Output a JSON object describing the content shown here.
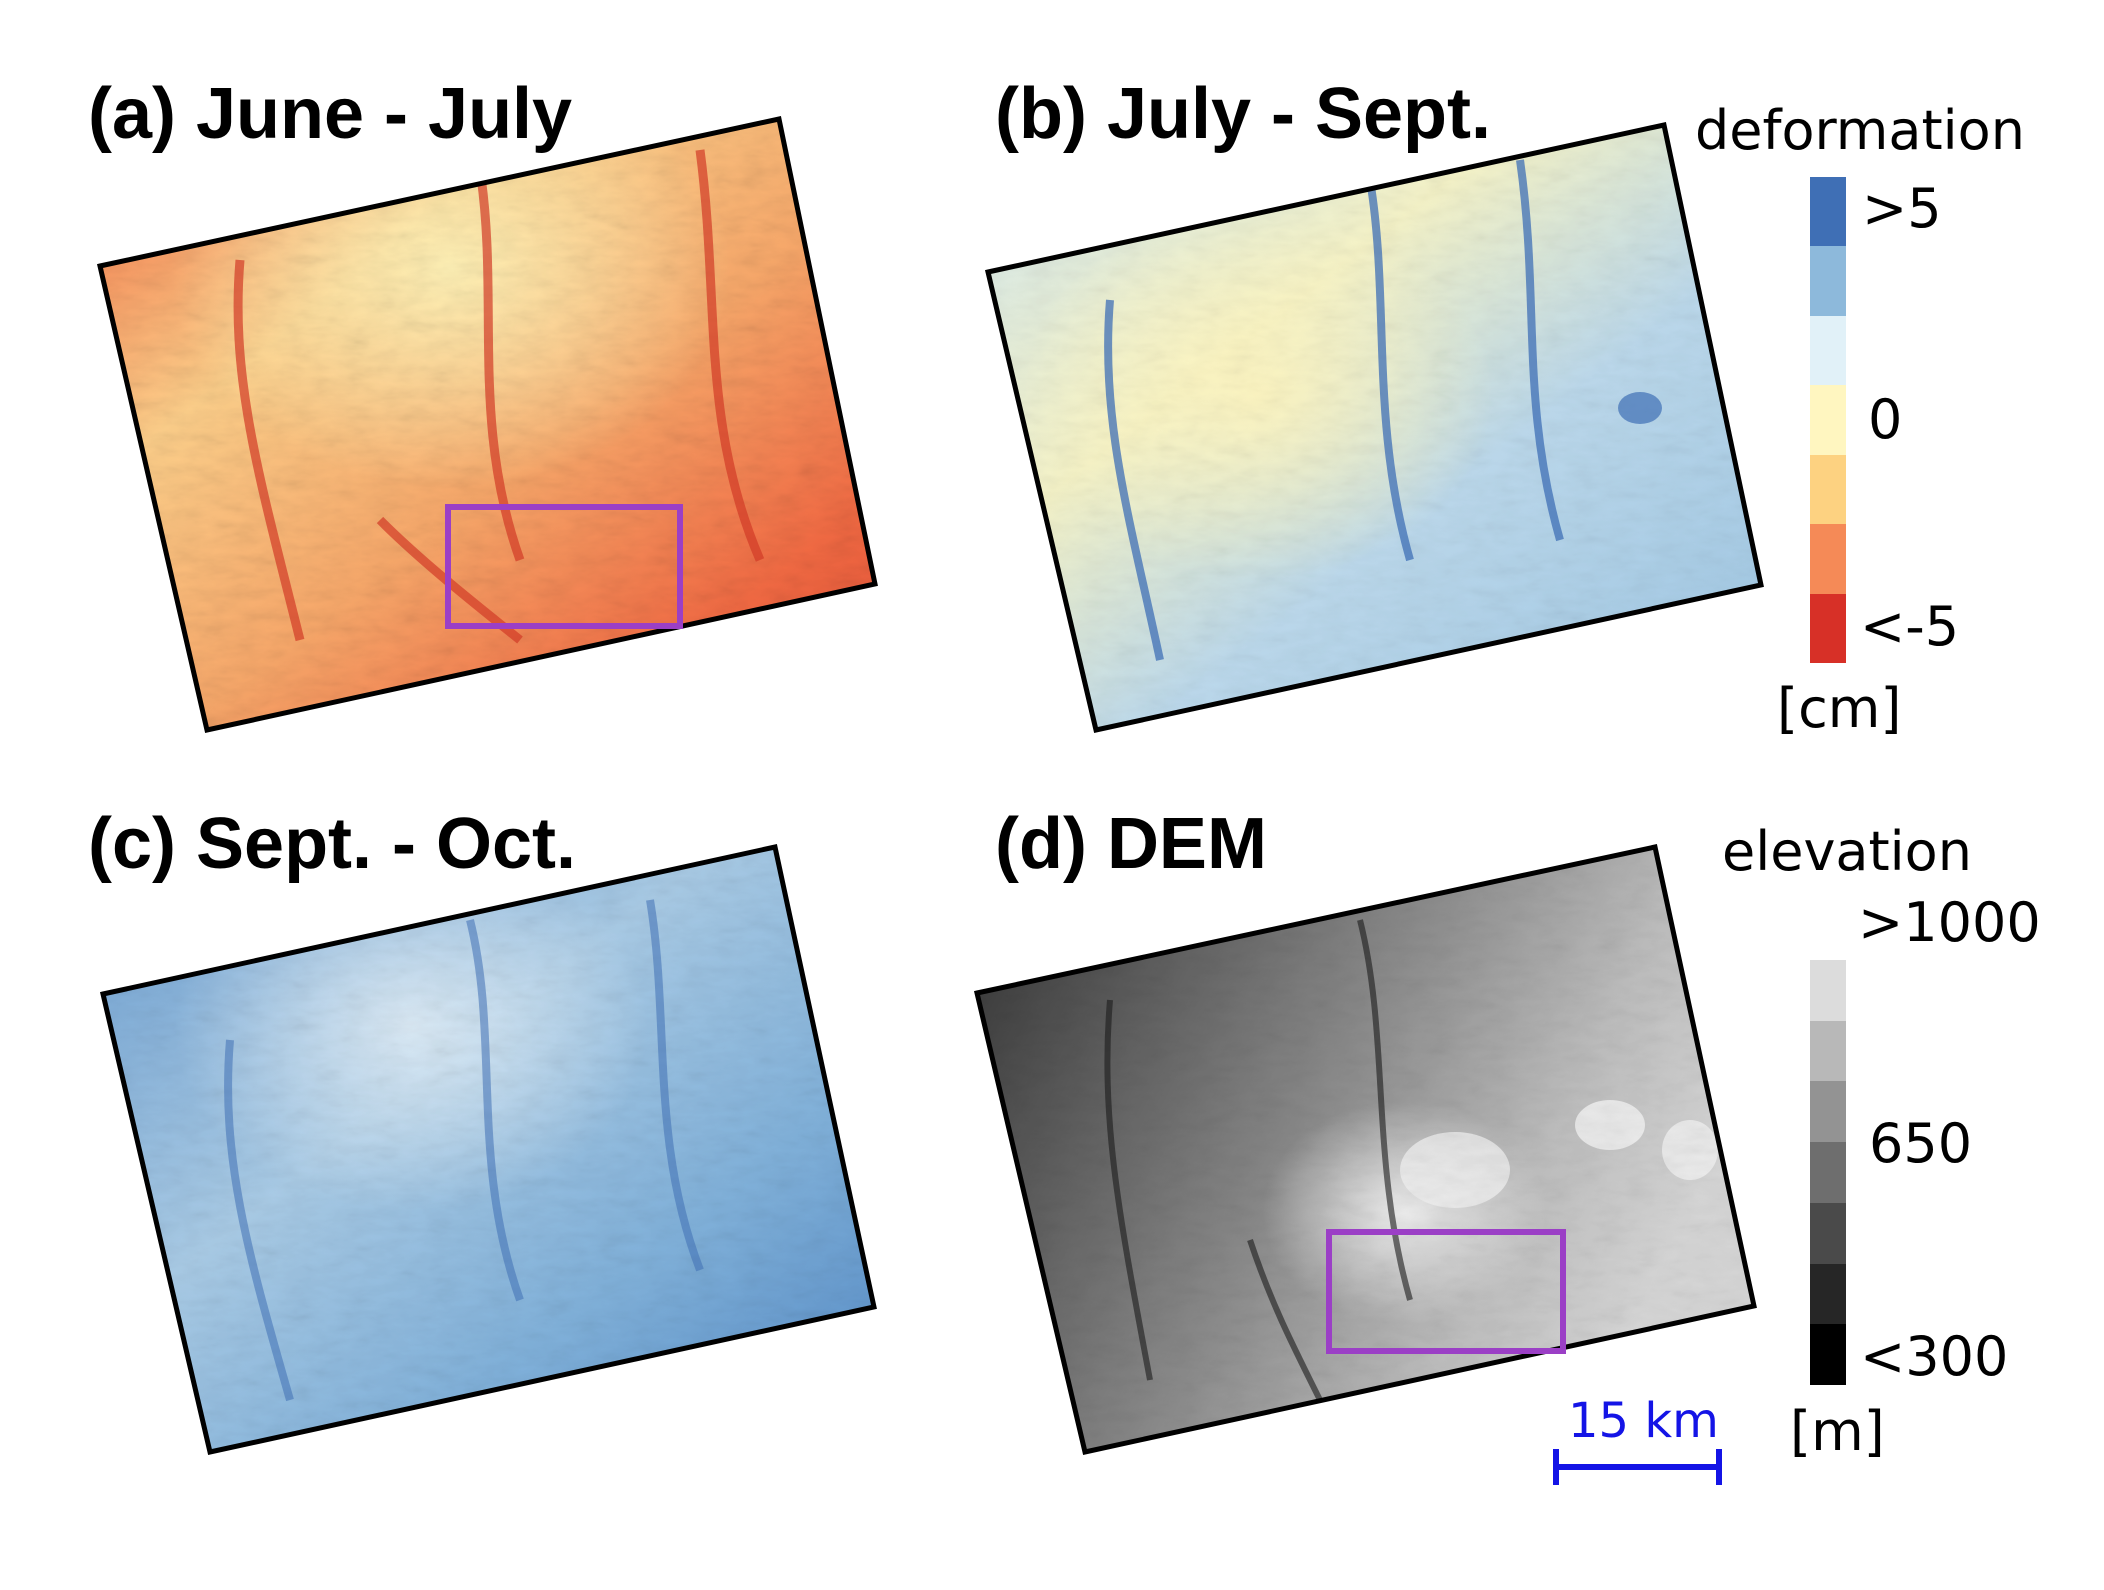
{
  "panels": [
    {
      "title": "(a) June - July"
    },
    {
      "title": "(b) July - Sept."
    },
    {
      "title": "(c) Sept. - Oct."
    },
    {
      "title": "(d) DEM"
    }
  ],
  "deformation_legend": {
    "title": "deformation",
    "labels": [
      ">5",
      "0",
      "<-5"
    ],
    "unit": "[cm]",
    "colors": [
      "#3f6fb5",
      "#8db9db",
      "#e1f1f8",
      "#fff6c0",
      "#fdd281",
      "#f58a57",
      "#d73027"
    ]
  },
  "elevation_legend": {
    "title": "elevation",
    "labels": [
      ">1000",
      "650",
      "<300"
    ],
    "unit": "[m]",
    "colors": [
      "#ffffff",
      "#dcdcdc",
      "#b8b8b8",
      "#939393",
      "#6e6e6e",
      "#4a4a4a",
      "#262626",
      "#000000"
    ]
  },
  "scale_bar": {
    "label": "15 km",
    "color": "#1414e6"
  },
  "highlight_color": "#9b3fc6"
}
